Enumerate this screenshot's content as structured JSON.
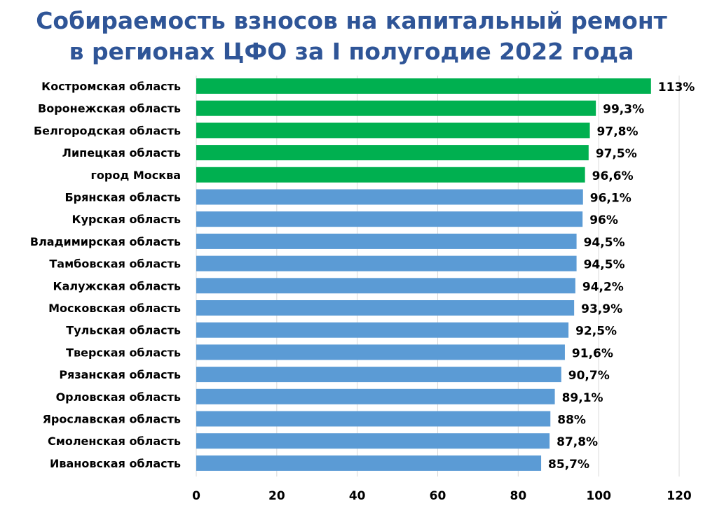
{
  "chart_data": {
    "type": "bar",
    "orientation": "horizontal",
    "title_line1": "Собираемость взносов на капитальный ремонт",
    "title_line2": "в регионах ЦФО за I полугодие 2022 года",
    "categories": [
      "Костромская область",
      "Воронежская область",
      "Белгородская область",
      "Липецкая область",
      "город Москва",
      "Брянская область",
      "Курская область",
      "Владимирская область",
      "Тамбовская область",
      "Калужская область",
      "Московская область",
      "Тульская область",
      "Тверская область",
      "Рязанская область",
      "Орловская область",
      "Ярославская область",
      "Смоленская область",
      "Ивановская область"
    ],
    "values": [
      113,
      99.3,
      97.8,
      97.5,
      96.6,
      96.1,
      96,
      94.5,
      94.5,
      94.2,
      93.9,
      92.5,
      91.6,
      90.7,
      89.1,
      88,
      87.8,
      85.7
    ],
    "labels": [
      "113%",
      "99,3%",
      "97,8%",
      "97,5%",
      "96,6%",
      "96,1%",
      "96%",
      "94,5%",
      "94,5%",
      "94,2%",
      "93,9%",
      "92,5%",
      "91,6%",
      "90,7%",
      "89,1%",
      "88%",
      "87,8%",
      "85,7%"
    ],
    "highlight_count": 5,
    "colors": {
      "highlight": "#00b050",
      "default": "#5b9bd5",
      "title": "#2f5597",
      "grid": "#d9d9d9"
    },
    "xlim": [
      0,
      120
    ],
    "xticks": [
      "0",
      "20",
      "40",
      "60",
      "80",
      "100",
      "120"
    ],
    "grid": true,
    "legend": "none"
  }
}
